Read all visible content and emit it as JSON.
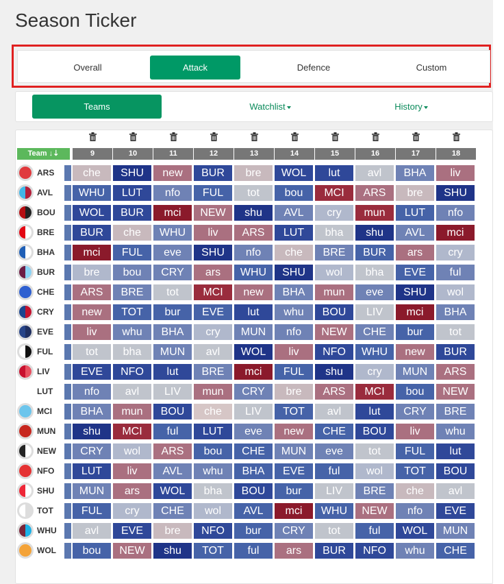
{
  "page": {
    "title": "Season Ticker"
  },
  "tabs": [
    {
      "label": "Overall",
      "active": false
    },
    {
      "label": "Attack",
      "active": true
    },
    {
      "label": "Defence",
      "active": false
    },
    {
      "label": "Custom",
      "active": false
    }
  ],
  "subtabs": [
    {
      "label": "Teams",
      "active": true,
      "dropdown": false
    },
    {
      "label": "Watchlist",
      "active": false,
      "dropdown": true
    },
    {
      "label": "History",
      "active": false,
      "dropdown": true
    }
  ],
  "grid": {
    "team_header": "Team ↓⇣",
    "gameweeks": [
      "9",
      "10",
      "11",
      "12",
      "13",
      "14",
      "15",
      "16",
      "17",
      "18"
    ],
    "difficulty_colors": {
      "1": "#c8b9bd",
      "2": "#b0b8cc",
      "3": "#aa7080",
      "4": "#8f99bb",
      "5": "#6f82b5",
      "6": "#4663a8",
      "7": "#2f4899",
      "8": "#1f3488",
      "9": "#8b1a2b",
      "10": "#c0c4cc",
      "11": "#d6c6c6",
      "12": "#9a2c3d"
    },
    "rows": [
      {
        "team": "ARS",
        "badge": [
          "#e03a3e",
          "#e03a3e"
        ],
        "cells": [
          [
            "che",
            1
          ],
          [
            "SHU",
            8
          ],
          [
            "new",
            3
          ],
          [
            "BUR",
            7
          ],
          [
            "bre",
            1
          ],
          [
            "WOL",
            7
          ],
          [
            "lut",
            7
          ],
          [
            "avl",
            10
          ],
          [
            "BHA",
            5
          ],
          [
            "liv",
            3
          ]
        ]
      },
      {
        "team": "AVL",
        "badge": [
          "#40b6e8",
          "#b31f3a"
        ],
        "cells": [
          [
            "WHU",
            6
          ],
          [
            "LUT",
            7
          ],
          [
            "nfo",
            5
          ],
          [
            "FUL",
            6
          ],
          [
            "tot",
            10
          ],
          [
            "bou",
            6
          ],
          [
            "MCI",
            12
          ],
          [
            "ARS",
            3
          ],
          [
            "bre",
            1
          ],
          [
            "SHU",
            8
          ]
        ]
      },
      {
        "team": "BOU",
        "badge": [
          "#b50e12",
          "#222222"
        ],
        "cells": [
          [
            "WOL",
            7
          ],
          [
            "BUR",
            7
          ],
          [
            "mci",
            9
          ],
          [
            "NEW",
            3
          ],
          [
            "shu",
            8
          ],
          [
            "AVL",
            5
          ],
          [
            "cry",
            2
          ],
          [
            "mun",
            12
          ],
          [
            "LUT",
            6
          ],
          [
            "nfo",
            5
          ]
        ]
      },
      {
        "team": "BRE",
        "badge": [
          "#e30613",
          "#ffffff"
        ],
        "cells": [
          [
            "BUR",
            7
          ],
          [
            "che",
            1
          ],
          [
            "WHU",
            5
          ],
          [
            "liv",
            3
          ],
          [
            "ARS",
            3
          ],
          [
            "LUT",
            7
          ],
          [
            "bha",
            10
          ],
          [
            "shu",
            8
          ],
          [
            "AVL",
            5
          ],
          [
            "mci",
            9
          ]
        ]
      },
      {
        "team": "BHA",
        "badge": [
          "#1f5fb6",
          "#ffffff"
        ],
        "cells": [
          [
            "mci",
            9
          ],
          [
            "FUL",
            6
          ],
          [
            "eve",
            5
          ],
          [
            "SHU",
            8
          ],
          [
            "nfo",
            5
          ],
          [
            "che",
            1
          ],
          [
            "BRE",
            5
          ],
          [
            "BUR",
            6
          ],
          [
            "ars",
            3
          ],
          [
            "cry",
            2
          ]
        ]
      },
      {
        "team": "BUR",
        "badge": [
          "#6c1d45",
          "#8bd3f5"
        ],
        "cells": [
          [
            "bre",
            2
          ],
          [
            "bou",
            5
          ],
          [
            "CRY",
            5
          ],
          [
            "ars",
            3
          ],
          [
            "WHU",
            6
          ],
          [
            "SHU",
            8
          ],
          [
            "wol",
            2
          ],
          [
            "bha",
            10
          ],
          [
            "EVE",
            6
          ],
          [
            "ful",
            5
          ]
        ]
      },
      {
        "team": "CHE",
        "badge": [
          "#2e5fd0",
          "#2e5fd0"
        ],
        "cells": [
          [
            "ARS",
            3
          ],
          [
            "BRE",
            5
          ],
          [
            "tot",
            10
          ],
          [
            "MCI",
            12
          ],
          [
            "new",
            3
          ],
          [
            "BHA",
            5
          ],
          [
            "mun",
            3
          ],
          [
            "eve",
            5
          ],
          [
            "SHU",
            8
          ],
          [
            "wol",
            2
          ]
        ]
      },
      {
        "team": "CRY",
        "badge": [
          "#1b458f",
          "#c4122e"
        ],
        "cells": [
          [
            "new",
            3
          ],
          [
            "TOT",
            6
          ],
          [
            "bur",
            6
          ],
          [
            "EVE",
            6
          ],
          [
            "lut",
            7
          ],
          [
            "whu",
            5
          ],
          [
            "BOU",
            7
          ],
          [
            "LIV",
            10
          ],
          [
            "mci",
            9
          ],
          [
            "BHA",
            5
          ]
        ]
      },
      {
        "team": "EVE",
        "badge": [
          "#274488",
          "#1f2f60"
        ],
        "cells": [
          [
            "liv",
            3
          ],
          [
            "whu",
            5
          ],
          [
            "BHA",
            5
          ],
          [
            "cry",
            2
          ],
          [
            "MUN",
            5
          ],
          [
            "nfo",
            5
          ],
          [
            "NEW",
            3
          ],
          [
            "CHE",
            5
          ],
          [
            "bur",
            6
          ],
          [
            "tot",
            10
          ]
        ]
      },
      {
        "team": "FUL",
        "badge": [
          "#ffffff",
          "#111111"
        ],
        "cells": [
          [
            "tot",
            10
          ],
          [
            "bha",
            10
          ],
          [
            "MUN",
            5
          ],
          [
            "avl",
            10
          ],
          [
            "WOL",
            8
          ],
          [
            "liv",
            3
          ],
          [
            "NFO",
            7
          ],
          [
            "WHU",
            6
          ],
          [
            "new",
            3
          ],
          [
            "BUR",
            7
          ]
        ]
      },
      {
        "team": "LIV",
        "badge": [
          "#c8102e",
          "#e85060"
        ],
        "cells": [
          [
            "EVE",
            7
          ],
          [
            "NFO",
            7
          ],
          [
            "lut",
            7
          ],
          [
            "BRE",
            5
          ],
          [
            "mci",
            9
          ],
          [
            "FUL",
            6
          ],
          [
            "shu",
            8
          ],
          [
            "cry",
            2
          ],
          [
            "MUN",
            5
          ],
          [
            "ARS",
            3
          ]
        ]
      },
      {
        "team": "LUT",
        "badge": null,
        "cells": [
          [
            "nfo",
            5
          ],
          [
            "avl",
            10
          ],
          [
            "LIV",
            10
          ],
          [
            "mun",
            3
          ],
          [
            "CRY",
            5
          ],
          [
            "bre",
            1
          ],
          [
            "ARS",
            3
          ],
          [
            "MCI",
            12
          ],
          [
            "bou",
            6
          ],
          [
            "NEW",
            3
          ]
        ]
      },
      {
        "team": "MCI",
        "badge": [
          "#6cc5ec",
          "#6cc5ec"
        ],
        "cells": [
          [
            "BHA",
            5
          ],
          [
            "mun",
            3
          ],
          [
            "BOU",
            7
          ],
          [
            "che",
            11
          ],
          [
            "LIV",
            10
          ],
          [
            "TOT",
            6
          ],
          [
            "avl",
            10
          ],
          [
            "lut",
            7
          ],
          [
            "CRY",
            5
          ],
          [
            "BRE",
            5
          ]
        ]
      },
      {
        "team": "MUN",
        "badge": [
          "#c7271f",
          "#c7271f"
        ],
        "cells": [
          [
            "shu",
            8
          ],
          [
            "MCI",
            12
          ],
          [
            "ful",
            6
          ],
          [
            "LUT",
            7
          ],
          [
            "eve",
            5
          ],
          [
            "new",
            3
          ],
          [
            "CHE",
            6
          ],
          [
            "BOU",
            7
          ],
          [
            "liv",
            3
          ],
          [
            "whu",
            5
          ]
        ]
      },
      {
        "team": "NEW",
        "badge": [
          "#222222",
          "#ffffff"
        ],
        "cells": [
          [
            "CRY",
            5
          ],
          [
            "wol",
            2
          ],
          [
            "ARS",
            3
          ],
          [
            "bou",
            6
          ],
          [
            "CHE",
            6
          ],
          [
            "MUN",
            5
          ],
          [
            "eve",
            5
          ],
          [
            "tot",
            10
          ],
          [
            "FUL",
            6
          ],
          [
            "lut",
            7
          ]
        ]
      },
      {
        "team": "NFO",
        "badge": [
          "#e53233",
          "#e53233"
        ],
        "cells": [
          [
            "LUT",
            7
          ],
          [
            "liv",
            3
          ],
          [
            "AVL",
            5
          ],
          [
            "whu",
            5
          ],
          [
            "BHA",
            6
          ],
          [
            "EVE",
            6
          ],
          [
            "ful",
            6
          ],
          [
            "wol",
            2
          ],
          [
            "TOT",
            6
          ],
          [
            "BOU",
            7
          ]
        ]
      },
      {
        "team": "SHU",
        "badge": [
          "#ee2737",
          "#ffffff"
        ],
        "cells": [
          [
            "MUN",
            5
          ],
          [
            "ars",
            3
          ],
          [
            "WOL",
            7
          ],
          [
            "bha",
            10
          ],
          [
            "BOU",
            7
          ],
          [
            "bur",
            6
          ],
          [
            "LIV",
            10
          ],
          [
            "BRE",
            5
          ],
          [
            "che",
            1
          ],
          [
            "avl",
            10
          ]
        ]
      },
      {
        "team": "TOT",
        "badge": [
          "#ffffff",
          "#dddddd"
        ],
        "cells": [
          [
            "FUL",
            6
          ],
          [
            "cry",
            2
          ],
          [
            "CHE",
            5
          ],
          [
            "wol",
            2
          ],
          [
            "AVL",
            6
          ],
          [
            "mci",
            9
          ],
          [
            "WHU",
            6
          ],
          [
            "NEW",
            3
          ],
          [
            "nfo",
            5
          ],
          [
            "EVE",
            7
          ]
        ]
      },
      {
        "team": "WHU",
        "badge": [
          "#7a263a",
          "#1bb1e7"
        ],
        "cells": [
          [
            "avl",
            10
          ],
          [
            "EVE",
            7
          ],
          [
            "bre",
            1
          ],
          [
            "NFO",
            7
          ],
          [
            "bur",
            6
          ],
          [
            "CRY",
            5
          ],
          [
            "tot",
            10
          ],
          [
            "ful",
            6
          ],
          [
            "WOL",
            7
          ],
          [
            "MUN",
            5
          ]
        ]
      },
      {
        "team": "WOL",
        "badge": [
          "#f4a338",
          "#f4a338"
        ],
        "cells": [
          [
            "bou",
            6
          ],
          [
            "NEW",
            3
          ],
          [
            "shu",
            8
          ],
          [
            "TOT",
            6
          ],
          [
            "ful",
            6
          ],
          [
            "ars",
            3
          ],
          [
            "BUR",
            7
          ],
          [
            "NFO",
            7
          ],
          [
            "whu",
            5
          ],
          [
            "CHE",
            6
          ]
        ]
      }
    ]
  }
}
